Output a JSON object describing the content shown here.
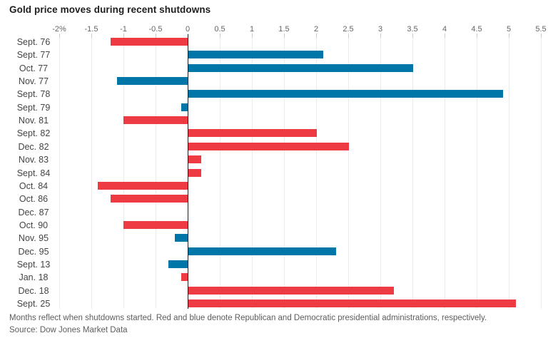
{
  "title": "Gold price moves during recent shutdowns",
  "chart_data": {
    "type": "bar",
    "orientation": "horizontal",
    "title": "Gold price moves during recent shutdowns",
    "unit": "percent",
    "categories": [
      "Sept. 76",
      "Sept. 77",
      "Oct. 77",
      "Nov. 77",
      "Sept. 78",
      "Sept. 79",
      "Nov. 81",
      "Sept. 82",
      "Dec. 82",
      "Nov. 83",
      "Sept. 84",
      "Oct. 84",
      "Oct. 86",
      "Dec. 87",
      "Oct. 90",
      "Nov. 95",
      "Dec. 95",
      "Sept. 13",
      "Jan. 18",
      "Dec. 18",
      "Sept. 25"
    ],
    "values": [
      -1.2,
      2.1,
      3.5,
      -1.1,
      4.9,
      -0.1,
      -1.0,
      2.0,
      2.5,
      0.2,
      0.2,
      -1.4,
      -1.2,
      0.0,
      -1.0,
      -0.2,
      2.3,
      -0.3,
      -0.1,
      3.2,
      5.1
    ],
    "parties": [
      "R",
      "D",
      "D",
      "D",
      "D",
      "D",
      "R",
      "R",
      "R",
      "R",
      "R",
      "R",
      "R",
      "R",
      "R",
      "D",
      "D",
      "D",
      "R",
      "R",
      "R"
    ],
    "colors": {
      "republican": "#ee3b43",
      "democratic": "#0076a8"
    },
    "xlim": [
      -2,
      5.5
    ],
    "tick_step": 0.5,
    "tick_labels": [
      "-2%",
      "-1.5",
      "-1",
      "-0.5",
      "0",
      "0.5",
      "1",
      "1.5",
      "2",
      "2.5",
      "3",
      "3.5",
      "4",
      "4.5",
      "5",
      "5.5"
    ],
    "grid": true,
    "legend": "none",
    "xlabel": "",
    "ylabel": ""
  },
  "footer": {
    "note": "Months reflect when shutdowns started. Red and blue denote Republican and Democratic presidential administrations, respectively.",
    "source": "Source: Dow Jones Market Data"
  }
}
